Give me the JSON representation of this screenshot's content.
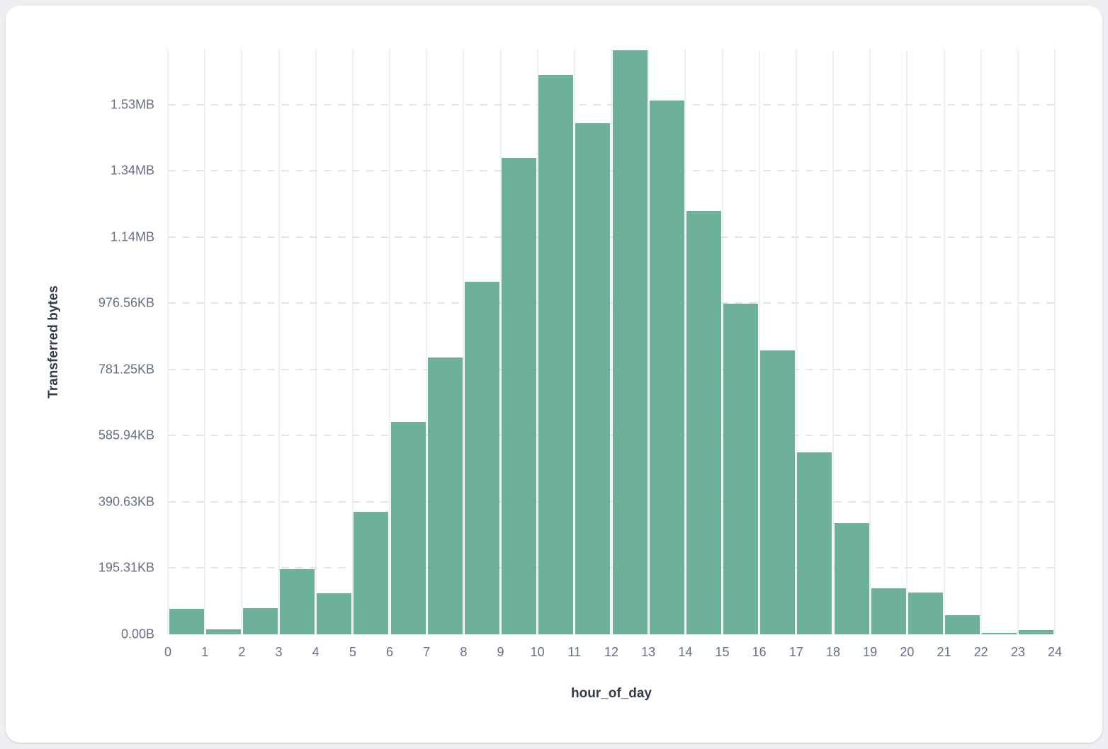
{
  "chart_data": {
    "type": "bar",
    "subtype": "histogram",
    "title": "",
    "xlabel": "hour_of_day",
    "ylabel": "Transferred bytes",
    "categories": [
      0,
      1,
      2,
      3,
      4,
      5,
      6,
      7,
      8,
      9,
      10,
      11,
      12,
      13,
      14,
      15,
      16,
      17,
      18,
      19,
      20,
      21,
      22,
      23
    ],
    "values_bytes": [
      76000,
      15000,
      79000,
      197000,
      125000,
      369000,
      641000,
      835000,
      1064000,
      1438000,
      1689000,
      1543000,
      1764000,
      1612000,
      1278000,
      998000,
      857000,
      549000,
      335000,
      140000,
      126000,
      57000,
      4000,
      13000
    ],
    "unit": "bytes",
    "ylim": [
      0,
      1766000
    ],
    "y_ticks": [
      {
        "label": "0.00B",
        "bytes": 0
      },
      {
        "label": "195.31KB",
        "bytes": 200000
      },
      {
        "label": "390.63KB",
        "bytes": 400000
      },
      {
        "label": "585.94KB",
        "bytes": 600000
      },
      {
        "label": "781.25KB",
        "bytes": 800000
      },
      {
        "label": "976.56KB",
        "bytes": 1000000
      },
      {
        "label": "1.14MB",
        "bytes": 1200000
      },
      {
        "label": "1.34MB",
        "bytes": 1400000
      },
      {
        "label": "1.53MB",
        "bytes": 1600000
      }
    ],
    "x_tick_labels": [
      "0",
      "1",
      "2",
      "3",
      "4",
      "5",
      "6",
      "7",
      "8",
      "9",
      "10",
      "11",
      "12",
      "13",
      "14",
      "15",
      "16",
      "17",
      "18",
      "19",
      "20",
      "21",
      "22",
      "23",
      "24"
    ],
    "grid": {
      "vertical": "solid",
      "horizontal": "dashed"
    },
    "legend_position": "none",
    "colors": {
      "bar": "#6db19c",
      "vertical_gridline": "#eef0f3",
      "horizontal_gridline": "#e2e6eb",
      "tick_text": "#667084",
      "axis_title_text": "#343b49",
      "card_background": "#ffffff",
      "page_background": "#edeff2"
    }
  }
}
